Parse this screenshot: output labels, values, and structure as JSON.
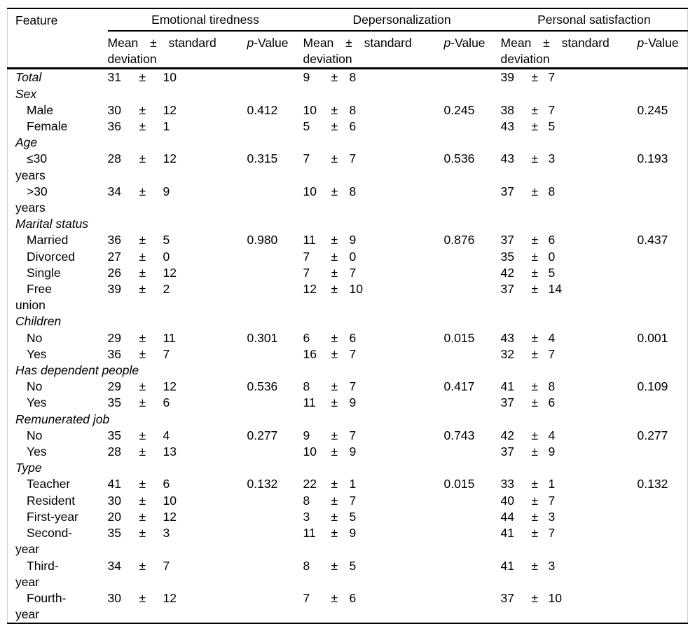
{
  "table": {
    "feature_header": "Feature",
    "group_headers": [
      "Emotional tiredness",
      "Depersonalization",
      "Personal satisfaction"
    ],
    "mean_sd_header": "Mean ± standard deviation",
    "p_header_italic": "p",
    "p_header_rest": "-Value",
    "rows": [
      {
        "label": "Total",
        "italic": true,
        "et": {
          "mean": "31",
          "pm": "±",
          "sd": "10",
          "p": ""
        },
        "dp": {
          "mean": "9",
          "pm": "±",
          "sd": "8",
          "p": ""
        },
        "ps": {
          "mean": "39",
          "pm": "±",
          "sd": "7",
          "p": ""
        }
      },
      {
        "label": "Sex",
        "section": true
      },
      {
        "label": "Male",
        "indent": true,
        "et": {
          "mean": "30",
          "pm": "±",
          "sd": "12",
          "p": "0.412"
        },
        "dp": {
          "mean": "10",
          "pm": "±",
          "sd": "8",
          "p": "0.245"
        },
        "ps": {
          "mean": "38",
          "pm": "±",
          "sd": "7",
          "p": "0.245"
        }
      },
      {
        "label": "Female",
        "indent": true,
        "et": {
          "mean": "36",
          "pm": "±",
          "sd": "1",
          "p": ""
        },
        "dp": {
          "mean": "5",
          "pm": "±",
          "sd": "6",
          "p": ""
        },
        "ps": {
          "mean": "43",
          "pm": "±",
          "sd": "5",
          "p": ""
        }
      },
      {
        "label": "Age",
        "section": true
      },
      {
        "label": "≤30 years",
        "indent": true,
        "et": {
          "mean": "28",
          "pm": "±",
          "sd": "12",
          "p": "0.315"
        },
        "dp": {
          "mean": "7",
          "pm": "±",
          "sd": "7",
          "p": "0.536"
        },
        "ps": {
          "mean": "43",
          "pm": "±",
          "sd": "3",
          "p": "0.193"
        }
      },
      {
        "label": ">30 years",
        "indent": true,
        "et": {
          "mean": "34",
          "pm": "±",
          "sd": "9",
          "p": ""
        },
        "dp": {
          "mean": "10",
          "pm": "±",
          "sd": "8",
          "p": ""
        },
        "ps": {
          "mean": "37",
          "pm": "±",
          "sd": "8",
          "p": ""
        }
      },
      {
        "label": "Marital status",
        "section": true
      },
      {
        "label": "Married",
        "indent": true,
        "et": {
          "mean": "36",
          "pm": "±",
          "sd": "5",
          "p": "0.980"
        },
        "dp": {
          "mean": "11",
          "pm": "±",
          "sd": "9",
          "p": "0.876"
        },
        "ps": {
          "mean": "37",
          "pm": "±",
          "sd": "6",
          "p": "0.437"
        }
      },
      {
        "label": "Divorced",
        "indent": true,
        "et": {
          "mean": "27",
          "pm": "±",
          "sd": "0",
          "p": ""
        },
        "dp": {
          "mean": "7",
          "pm": "±",
          "sd": "0",
          "p": ""
        },
        "ps": {
          "mean": "35",
          "pm": "±",
          "sd": "0",
          "p": ""
        }
      },
      {
        "label": "Single",
        "indent": true,
        "et": {
          "mean": "26",
          "pm": "±",
          "sd": "12",
          "p": ""
        },
        "dp": {
          "mean": "7",
          "pm": "±",
          "sd": "7",
          "p": ""
        },
        "ps": {
          "mean": "42",
          "pm": "±",
          "sd": "5",
          "p": ""
        }
      },
      {
        "label": "Free union",
        "indent": true,
        "et": {
          "mean": "39",
          "pm": "±",
          "sd": "2",
          "p": ""
        },
        "dp": {
          "mean": "12",
          "pm": "±",
          "sd": "10",
          "p": ""
        },
        "ps": {
          "mean": "37",
          "pm": "±",
          "sd": "14",
          "p": ""
        }
      },
      {
        "label": "Children",
        "section": true
      },
      {
        "label": "No",
        "indent": true,
        "et": {
          "mean": "29",
          "pm": "±",
          "sd": "11",
          "p": "0.301"
        },
        "dp": {
          "mean": "6",
          "pm": "±",
          "sd": "6",
          "p": "0.015"
        },
        "ps": {
          "mean": "43",
          "pm": "±",
          "sd": "4",
          "p": "0.001"
        }
      },
      {
        "label": "Yes",
        "indent": true,
        "et": {
          "mean": "36",
          "pm": "±",
          "sd": "7",
          "p": ""
        },
        "dp": {
          "mean": "16",
          "pm": "±",
          "sd": "7",
          "p": ""
        },
        "ps": {
          "mean": "32",
          "pm": "±",
          "sd": "7",
          "p": ""
        }
      },
      {
        "label": "Has dependent people",
        "section": true
      },
      {
        "label": "No",
        "indent": true,
        "et": {
          "mean": "29",
          "pm": "±",
          "sd": "12",
          "p": "0.536"
        },
        "dp": {
          "mean": "8",
          "pm": "±",
          "sd": "7",
          "p": "0.417"
        },
        "ps": {
          "mean": "41",
          "pm": "±",
          "sd": "8",
          "p": "0.109"
        }
      },
      {
        "label": "Yes",
        "indent": true,
        "et": {
          "mean": "35",
          "pm": "±",
          "sd": "6",
          "p": ""
        },
        "dp": {
          "mean": "11",
          "pm": "±",
          "sd": "9",
          "p": ""
        },
        "ps": {
          "mean": "37",
          "pm": "±",
          "sd": "6",
          "p": ""
        }
      },
      {
        "label": "Remunerated job",
        "section": true
      },
      {
        "label": "No",
        "indent": true,
        "et": {
          "mean": "35",
          "pm": "±",
          "sd": "4",
          "p": "0.277"
        },
        "dp": {
          "mean": "9",
          "pm": "±",
          "sd": "7",
          "p": "0.743"
        },
        "ps": {
          "mean": "42",
          "pm": "±",
          "sd": "4",
          "p": "0.277"
        }
      },
      {
        "label": "Yes",
        "indent": true,
        "et": {
          "mean": "28",
          "pm": "±",
          "sd": "13",
          "p": ""
        },
        "dp": {
          "mean": "10",
          "pm": "±",
          "sd": "9",
          "p": ""
        },
        "ps": {
          "mean": "37",
          "pm": "±",
          "sd": "9",
          "p": ""
        }
      },
      {
        "label": "Type",
        "section": true
      },
      {
        "label": "Teacher",
        "indent": true,
        "et": {
          "mean": "41",
          "pm": "±",
          "sd": "6",
          "p": "0.132"
        },
        "dp": {
          "mean": "22",
          "pm": "±",
          "sd": "1",
          "p": "0.015"
        },
        "ps": {
          "mean": "33",
          "pm": "±",
          "sd": "1",
          "p": "0.132"
        }
      },
      {
        "label": "Resident",
        "indent": true,
        "et": {
          "mean": "30",
          "pm": "±",
          "sd": "10",
          "p": ""
        },
        "dp": {
          "mean": "8",
          "pm": "±",
          "sd": "7",
          "p": ""
        },
        "ps": {
          "mean": "40",
          "pm": "±",
          "sd": "7",
          "p": ""
        }
      },
      {
        "label": "First-year",
        "indent": true,
        "et": {
          "mean": "20",
          "pm": "±",
          "sd": "12",
          "p": ""
        },
        "dp": {
          "mean": "3",
          "pm": "±",
          "sd": "5",
          "p": ""
        },
        "ps": {
          "mean": "44",
          "pm": "±",
          "sd": "3",
          "p": ""
        }
      },
      {
        "label": "Second-year",
        "indent": true,
        "et": {
          "mean": "35",
          "pm": "±",
          "sd": "3",
          "p": ""
        },
        "dp": {
          "mean": "11",
          "pm": "±",
          "sd": "9",
          "p": ""
        },
        "ps": {
          "mean": "41",
          "pm": "±",
          "sd": "7",
          "p": ""
        }
      },
      {
        "label": "Third-year",
        "indent": true,
        "et": {
          "mean": "34",
          "pm": "±",
          "sd": "7",
          "p": ""
        },
        "dp": {
          "mean": "8",
          "pm": "±",
          "sd": "5",
          "p": ""
        },
        "ps": {
          "mean": "41",
          "pm": "±",
          "sd": "3",
          "p": ""
        }
      },
      {
        "label": "Fourth-year",
        "indent": true,
        "et": {
          "mean": "30",
          "pm": "±",
          "sd": "12",
          "p": ""
        },
        "dp": {
          "mean": "7",
          "pm": "±",
          "sd": "6",
          "p": ""
        },
        "ps": {
          "mean": "37",
          "pm": "±",
          "sd": "10",
          "p": ""
        }
      }
    ]
  }
}
